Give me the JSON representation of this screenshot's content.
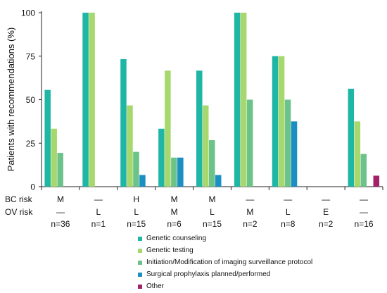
{
  "chart_data": {
    "type": "bar",
    "ylabel": "Patients with recommendations (%)",
    "ylim": [
      0,
      100
    ],
    "yticks": [
      0,
      25,
      50,
      75,
      100
    ],
    "row_labels": [
      "BC risk",
      "OV risk"
    ],
    "groups": [
      {
        "bc": "M",
        "ov": "—",
        "n": "n=36"
      },
      {
        "bc": "—",
        "ov": "L",
        "n": "n=1"
      },
      {
        "bc": "H",
        "ov": "L",
        "n": "n=15"
      },
      {
        "bc": "M",
        "ov": "M",
        "n": "n=6"
      },
      {
        "bc": "M",
        "ov": "L",
        "n": "n=15"
      },
      {
        "bc": "—",
        "ov": "M",
        "n": "n=2"
      },
      {
        "bc": "—",
        "ov": "L",
        "n": "n=8"
      },
      {
        "bc": "—",
        "ov": "E",
        "n": "n=2"
      },
      {
        "bc": "—",
        "ov": "—",
        "n": "n=16"
      }
    ],
    "series": [
      {
        "name": "Genetic counseling",
        "color": "#1fb6a6",
        "values": [
          55.6,
          100,
          73.3,
          33.3,
          66.7,
          100,
          75,
          0,
          56.3
        ]
      },
      {
        "name": "Genetic testing",
        "color": "#a6d86e",
        "values": [
          33.3,
          100,
          46.7,
          66.7,
          46.7,
          100,
          75,
          0,
          37.5
        ]
      },
      {
        "name": "Initiation/Modification of imaging surveillance protocol",
        "color": "#6cc38a",
        "values": [
          19.4,
          0,
          20,
          16.7,
          26.7,
          50,
          50,
          0,
          18.8
        ]
      },
      {
        "name": "Surgical prophylaxis planned/performed",
        "color": "#1a8fc4",
        "values": [
          0,
          0,
          6.7,
          16.7,
          6.7,
          0,
          37.5,
          0,
          0
        ]
      },
      {
        "name": "Other",
        "color": "#a3206b",
        "values": [
          0,
          0,
          0,
          0,
          0,
          0,
          0,
          0,
          6.3
        ]
      }
    ]
  }
}
